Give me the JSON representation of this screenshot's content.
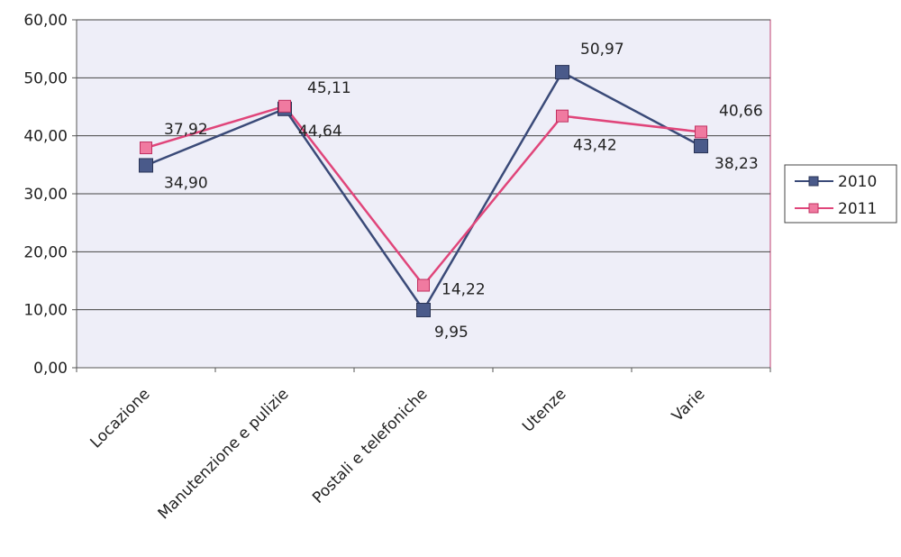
{
  "chart_data": {
    "type": "line",
    "categories": [
      "Locazione",
      "Manutenzione e pulizie",
      "Postali e telefoniche",
      "Utenze",
      "Varie"
    ],
    "series": [
      {
        "name": "2010",
        "values": [
          34.9,
          44.64,
          9.95,
          50.97,
          38.23
        ],
        "labels": [
          "34,90",
          "44,64",
          "9,95",
          "50,97",
          "38,23"
        ],
        "color": "#3a4a78",
        "marker_color": "#4a5a8a"
      },
      {
        "name": "2011",
        "values": [
          37.92,
          45.11,
          14.22,
          43.42,
          40.66
        ],
        "labels": [
          "37,92",
          "45,11",
          "14,22",
          "43,42",
          "40,66"
        ],
        "color": "#e0457a",
        "marker_color": "#f07aa0"
      }
    ],
    "yticks": [
      "0,00",
      "10,00",
      "20,00",
      "30,00",
      "40,00",
      "50,00",
      "60,00"
    ],
    "ylim": [
      0,
      60
    ],
    "grid": true,
    "legend": "right",
    "plot_background": "#eeeef8",
    "plot_border": "#c04070",
    "title": "",
    "xlabel": "",
    "ylabel": ""
  }
}
